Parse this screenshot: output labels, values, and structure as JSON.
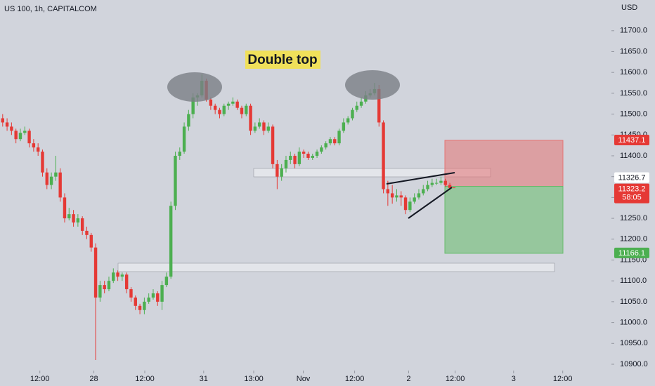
{
  "chart_data": {
    "type": "candlestick",
    "title": "US 100, 1h, CAPITALCOM",
    "currency": "USD",
    "annotation": "Double top",
    "up_color": "#4caf50",
    "down_color": "#e53935",
    "ylim": [
      10847.8,
      11773.7
    ],
    "xlim": [
      -0.6,
      137.5
    ],
    "yticks": [
      {
        "value": 10900,
        "label": "10900.0"
      },
      {
        "value": 10950,
        "label": "10950.0"
      },
      {
        "value": 11000,
        "label": "11000.0"
      },
      {
        "value": 11050,
        "label": "11050.0"
      },
      {
        "value": 11100,
        "label": "11100.0"
      },
      {
        "value": 11150,
        "label": "11150.0"
      },
      {
        "value": 11200,
        "label": "11200.0"
      },
      {
        "value": 11250,
        "label": "11250.0"
      },
      {
        "value": 11300,
        "label": "11300.0"
      },
      {
        "value": 11350,
        "label": "11350.0"
      },
      {
        "value": 11400,
        "label": "11400.0"
      },
      {
        "value": 11450,
        "label": "11450.0"
      },
      {
        "value": 11500,
        "label": "11500.0"
      },
      {
        "value": 11550,
        "label": "11550.0"
      },
      {
        "value": 11600,
        "label": "11600.0"
      },
      {
        "value": 11650,
        "label": "11650.0"
      },
      {
        "value": 11700,
        "label": "11700.0"
      }
    ],
    "xticks": [
      {
        "value": 8.4,
        "label": "12:00"
      },
      {
        "value": 20.6,
        "label": "28"
      },
      {
        "value": 32.1,
        "label": "12:00"
      },
      {
        "value": 45.4,
        "label": "31"
      },
      {
        "value": 56.7,
        "label": "13:00"
      },
      {
        "value": 67.9,
        "label": "Nov"
      },
      {
        "value": 79.5,
        "label": "12:00"
      },
      {
        "value": 91.7,
        "label": "2"
      },
      {
        "value": 102.2,
        "label": "12:00"
      },
      {
        "value": 115.4,
        "label": "3"
      },
      {
        "value": 126.5,
        "label": "12:00"
      }
    ],
    "position": {
      "stop": 11437.1,
      "entry": 11326.7,
      "target": 11166.1
    },
    "last_price": 11323.2,
    "countdown": "58:05",
    "candles": [
      [
        11490,
        11500,
        11470,
        11480
      ],
      [
        11480,
        11490,
        11460,
        11470
      ],
      [
        11470,
        11480,
        11450,
        11460
      ],
      [
        11460,
        11465,
        11430,
        11440
      ],
      [
        11440,
        11465,
        11435,
        11455
      ],
      [
        11455,
        11470,
        11450,
        11460
      ],
      [
        11460,
        11465,
        11420,
        11430
      ],
      [
        11430,
        11440,
        11410,
        11420
      ],
      [
        11420,
        11430,
        11400,
        11410
      ],
      [
        11410,
        11415,
        11350,
        11360
      ],
      [
        11360,
        11370,
        11320,
        11330
      ],
      [
        11330,
        11360,
        11320,
        11350
      ],
      [
        11350,
        11400,
        11340,
        11360
      ],
      [
        11360,
        11370,
        11290,
        11300
      ],
      [
        11300,
        11310,
        11240,
        11250
      ],
      [
        11250,
        11275,
        11245,
        11260
      ],
      [
        11260,
        11270,
        11230,
        11240
      ],
      [
        11240,
        11260,
        11230,
        11250
      ],
      [
        11250,
        11255,
        11210,
        11220
      ],
      [
        11220,
        11230,
        11200,
        11210
      ],
      [
        11210,
        11215,
        11170,
        11180
      ],
      [
        11180,
        11190,
        10910,
        11060
      ],
      [
        11060,
        11100,
        11050,
        11090
      ],
      [
        11090,
        11100,
        11070,
        11080
      ],
      [
        11080,
        11110,
        11075,
        11100
      ],
      [
        11100,
        11130,
        11095,
        11120
      ],
      [
        11120,
        11125,
        11100,
        11110
      ],
      [
        11110,
        11120,
        11100,
        11115
      ],
      [
        11115,
        11120,
        11070,
        11080
      ],
      [
        11080,
        11085,
        11050,
        11060
      ],
      [
        11060,
        11065,
        11030,
        11040
      ],
      [
        11040,
        11045,
        11020,
        11030
      ],
      [
        11030,
        11060,
        11020,
        11050
      ],
      [
        11050,
        11070,
        11045,
        11060
      ],
      [
        11060,
        11080,
        11055,
        11070
      ],
      [
        11070,
        11075,
        11040,
        11050
      ],
      [
        11050,
        11100,
        11030,
        11090
      ],
      [
        11090,
        11120,
        11085,
        11110
      ],
      [
        11110,
        11290,
        11105,
        11280
      ],
      [
        11280,
        11410,
        11270,
        11400
      ],
      [
        11400,
        11420,
        11390,
        11410
      ],
      [
        11410,
        11480,
        11405,
        11470
      ],
      [
        11470,
        11510,
        11460,
        11500
      ],
      [
        11500,
        11550,
        11490,
        11540
      ],
      [
        11540,
        11550,
        11520,
        11545
      ],
      [
        11545,
        11595,
        11540,
        11580
      ],
      [
        11580,
        11585,
        11530,
        11535
      ],
      [
        11535,
        11540,
        11510,
        11520
      ],
      [
        11520,
        11525,
        11500,
        11510
      ],
      [
        11510,
        11515,
        11490,
        11500
      ],
      [
        11500,
        11525,
        11495,
        11520
      ],
      [
        11520,
        11530,
        11510,
        11525
      ],
      [
        11525,
        11540,
        11520,
        11530
      ],
      [
        11530,
        11535,
        11510,
        11515
      ],
      [
        11515,
        11520,
        11490,
        11500
      ],
      [
        11500,
        11525,
        11495,
        11520
      ],
      [
        11520,
        11525,
        11450,
        11460
      ],
      [
        11460,
        11480,
        11455,
        11470
      ],
      [
        11470,
        11490,
        11465,
        11480
      ],
      [
        11480,
        11485,
        11450,
        11460
      ],
      [
        11460,
        11480,
        11455,
        11470
      ],
      [
        11470,
        11475,
        11370,
        11380
      ],
      [
        11380,
        11390,
        11320,
        11350
      ],
      [
        11350,
        11380,
        11340,
        11370
      ],
      [
        11370,
        11400,
        11360,
        11390
      ],
      [
        11390,
        11410,
        11380,
        11400
      ],
      [
        11400,
        11405,
        11370,
        11380
      ],
      [
        11380,
        11420,
        11375,
        11410
      ],
      [
        11410,
        11415,
        11395,
        11405
      ],
      [
        11405,
        11410,
        11390,
        11395
      ],
      [
        11395,
        11405,
        11390,
        11400
      ],
      [
        11400,
        11415,
        11395,
        11410
      ],
      [
        11410,
        11425,
        11405,
        11420
      ],
      [
        11420,
        11435,
        11415,
        11430
      ],
      [
        11430,
        11445,
        11425,
        11440
      ],
      [
        11440,
        11445,
        11425,
        11430
      ],
      [
        11430,
        11465,
        11425,
        11460
      ],
      [
        11460,
        11490,
        11455,
        11480
      ],
      [
        11480,
        11495,
        11475,
        11490
      ],
      [
        11490,
        11515,
        11485,
        11510
      ],
      [
        11510,
        11530,
        11505,
        11520
      ],
      [
        11520,
        11540,
        11515,
        11530
      ],
      [
        11530,
        11555,
        11525,
        11545
      ],
      [
        11545,
        11560,
        11540,
        11550
      ],
      [
        11550,
        11575,
        11545,
        11560
      ],
      [
        11560,
        11570,
        11470,
        11480
      ],
      [
        11480,
        11485,
        11310,
        11320
      ],
      [
        11320,
        11340,
        11280,
        11310
      ],
      [
        11310,
        11330,
        11285,
        11300
      ],
      [
        11300,
        11320,
        11290,
        11305
      ],
      [
        11305,
        11315,
        11280,
        11300
      ],
      [
        11300,
        11305,
        11260,
        11270
      ],
      [
        11270,
        11300,
        11265,
        11290
      ],
      [
        11290,
        11310,
        11285,
        11300
      ],
      [
        11300,
        11320,
        11295,
        11310
      ],
      [
        11310,
        11330,
        11305,
        11320
      ],
      [
        11320,
        11340,
        11315,
        11330
      ],
      [
        11330,
        11345,
        11325,
        11335
      ],
      [
        11335,
        11345,
        11330,
        11335
      ],
      [
        11335,
        11350,
        11330,
        11340
      ],
      [
        11340,
        11345,
        11325,
        11330
      ],
      [
        11330,
        11335,
        11318,
        11323
      ]
    ]
  }
}
